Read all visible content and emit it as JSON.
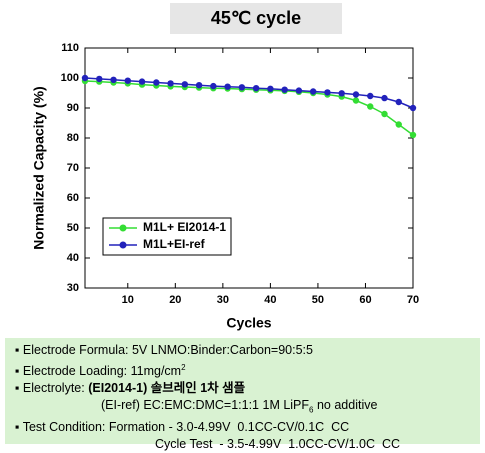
{
  "chart_data": {
    "type": "line",
    "title": "45℃ cycle",
    "x_label": "Cycles",
    "y_label": "Normalized Capacity (%)",
    "x": [
      1,
      4,
      7,
      10,
      13,
      16,
      19,
      22,
      25,
      28,
      31,
      34,
      37,
      40,
      43,
      46,
      49,
      52,
      55,
      58,
      61,
      64,
      67,
      70
    ],
    "series": [
      {
        "name": "M1L+ EI2014-1",
        "color": "#33dd33",
        "values": [
          99,
          98.8,
          98.5,
          98.2,
          97.8,
          97.5,
          97.2,
          97,
          96.8,
          96.6,
          96.5,
          96.3,
          96.1,
          95.9,
          95.7,
          95.4,
          95,
          94.5,
          93.8,
          92.5,
          90.5,
          88,
          84.5,
          81
        ]
      },
      {
        "name": "M1L+EI-ref",
        "color": "#2222bb",
        "values": [
          100,
          99.7,
          99.4,
          99.1,
          98.8,
          98.5,
          98.2,
          97.9,
          97.6,
          97.3,
          97.1,
          96.9,
          96.6,
          96.4,
          96.1,
          95.8,
          95.5,
          95.2,
          94.9,
          94.5,
          94,
          93.3,
          92,
          90
        ]
      }
    ],
    "xlim": [
      1,
      70
    ],
    "xticks": [
      10,
      20,
      30,
      40,
      50,
      60,
      70
    ],
    "ylim": [
      30,
      110
    ],
    "yticks": [
      30,
      40,
      50,
      60,
      70,
      80,
      90,
      100,
      110
    ],
    "legend": "lower-left"
  },
  "notes": [
    [
      {
        "text": "Electrode Formula: 5V LNMO:Binder:Carbon=90:5:5"
      }
    ],
    [
      {
        "text": "Electrode Loading: 11mg/cm"
      },
      {
        "text": "2",
        "style": "sup"
      }
    ],
    [
      {
        "text": "Electrolyte: "
      },
      {
        "text": "(EI2014-1) 솔브레인 1차 샘플",
        "style": "bold"
      }
    ],
    [
      {
        "text": "(EI-ref) EC:EMC:DMC=1:1:1 1M LiPF"
      },
      {
        "text": "6",
        "style": "sub"
      },
      {
        "text": " no additive"
      }
    ],
    [
      {
        "text": "Test Condition: Formation - 3.0-4.99V  0.1CC-CV/0.1C  CC"
      }
    ],
    [
      {
        "text": "Cycle Test  - 3.5-4.99V  1.0CC-CV/1.0C  CC"
      }
    ]
  ]
}
